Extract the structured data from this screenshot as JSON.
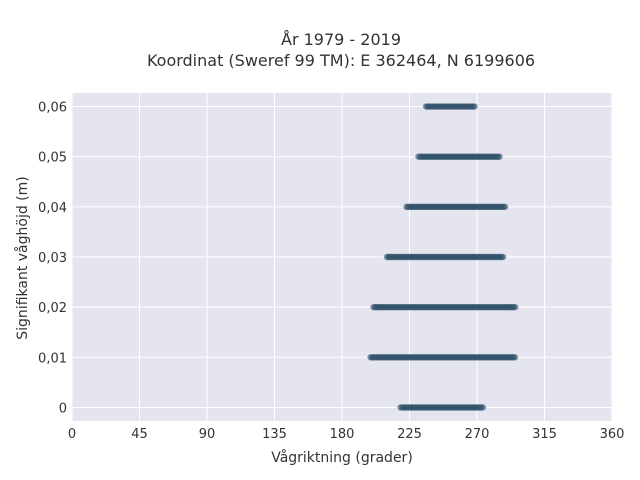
{
  "chart_data": {
    "type": "scatter",
    "title_line1": "År 1979 - 2019",
    "title_line2": "Koordinat (Sweref 99 TM): E 362464, N 6199606",
    "xlabel": "Vågriktning (grader)",
    "ylabel": "Signifikant våghöjd (m)",
    "xlim": [
      0,
      360
    ],
    "ylim": [
      -0.0027,
      0.0627
    ],
    "xticks": [
      0,
      45,
      90,
      135,
      180,
      225,
      270,
      315,
      360
    ],
    "xtick_labels": [
      "0",
      "45",
      "90",
      "135",
      "180",
      "225",
      "270",
      "315",
      "360"
    ],
    "yticks": [
      0,
      0.01,
      0.02,
      0.03,
      0.04,
      0.05,
      0.06
    ],
    "ytick_labels": [
      "0",
      "0,01",
      "0,02",
      "0,03",
      "0,04",
      "0,05",
      "0,06"
    ],
    "grid": true,
    "legend": false,
    "marker_color": "#2e5068",
    "background_color": "#e5e5f0",
    "series": [
      {
        "y": 0.0,
        "x_min": 219,
        "x_max": 274
      },
      {
        "y": 0.01,
        "x_min": 199,
        "x_max": 296
      },
      {
        "y": 0.02,
        "x_min": 201,
        "x_max": 296
      },
      {
        "y": 0.03,
        "x_min": 210,
        "x_max": 288
      },
      {
        "y": 0.04,
        "x_min": 223,
        "x_max": 289
      },
      {
        "y": 0.05,
        "x_min": 231,
        "x_max": 285
      },
      {
        "y": 0.06,
        "x_min": 236,
        "x_max": 269
      }
    ]
  }
}
